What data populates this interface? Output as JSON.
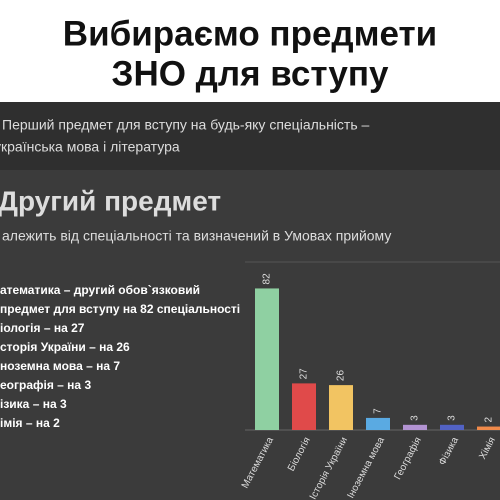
{
  "header": {
    "title_lines": [
      "Вибираємо предмети",
      "ЗНО для вступу"
    ]
  },
  "intro": {
    "lines": [
      "Перший предмет для вступу на будь-яку спеціальність –",
      "українська мова і література"
    ]
  },
  "section": {
    "title": "Другий предмет",
    "subtitle": "алежить від спеціальності та визначений в Умовах прийому",
    "list": [
      "атематика – другий обов`язковий",
      "предмет для вступу на 82 спеціальності",
      "іологія – на 27",
      "сторія України –  на 26",
      "ноземна мова  –  на 7",
      "еографія  –  на 3",
      "ізика  –  на 3",
      "імія  –  на 2"
    ]
  },
  "chart_data": {
    "type": "bar",
    "categories": [
      "Математика",
      "Біологія",
      "Історія України",
      "Іноземна мова",
      "Географія",
      "Фізика",
      "Хімія"
    ],
    "values": [
      82,
      27,
      26,
      7,
      3,
      3,
      2
    ],
    "colors": [
      "#8fd0a2",
      "#e04a4a",
      "#f2c462",
      "#5aaae2",
      "#b293d2",
      "#5262c4",
      "#f08a4a"
    ],
    "ylim": [
      0,
      95
    ]
  }
}
